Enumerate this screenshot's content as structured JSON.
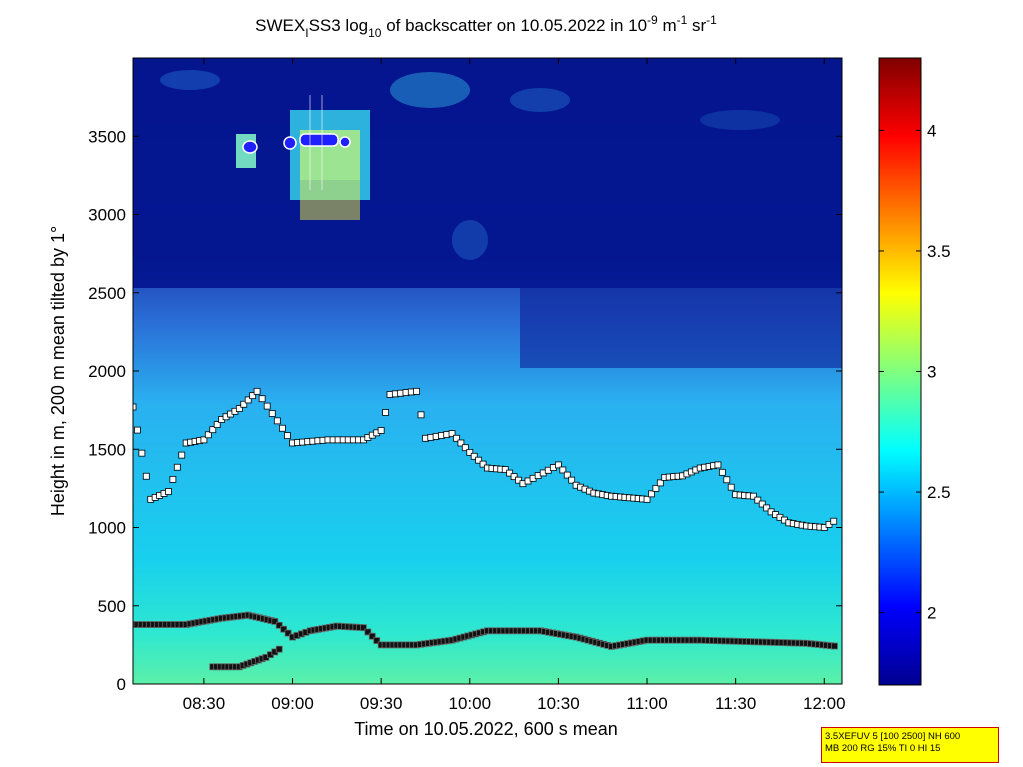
{
  "chart_data": {
    "type": "heatmap",
    "title": {
      "prefix": "SWEX",
      "sub1": "I",
      "middle": "SS3 log",
      "sub2": "10",
      "suffix1": " of backscatter on 10.05.2022 in 10",
      "sup1": "-9",
      "suffix2": " m",
      "sup2": "-1",
      "suffix3": " sr",
      "sup3": "-1"
    },
    "xlabel": "Time on 10.05.2022, 600 s mean",
    "ylabel": "Height in m, 200 m mean tilted by 1°",
    "x_ticks": [
      "08:30",
      "09:00",
      "09:30",
      "10:00",
      "10:30",
      "11:00",
      "11:30",
      "12:00"
    ],
    "x_range_hours": [
      8.1,
      12.1
    ],
    "y_ticks": [
      "0",
      "500",
      "1000",
      "1500",
      "2000",
      "2500",
      "3000",
      "3500"
    ],
    "y_range": [
      0,
      4000
    ],
    "colorbar": {
      "ticks": [
        "2",
        "2.5",
        "3",
        "3.5",
        "4"
      ],
      "range": [
        1.7,
        4.3
      ],
      "colormap": "jet"
    },
    "layer_markers": {
      "surface_layer": [
        [
          8.1,
          380
        ],
        [
          8.4,
          380
        ],
        [
          8.6,
          420
        ],
        [
          8.75,
          440
        ],
        [
          8.9,
          400
        ],
        [
          9.0,
          300
        ],
        [
          9.1,
          340
        ],
        [
          9.25,
          370
        ],
        [
          9.4,
          360
        ],
        [
          9.5,
          250
        ],
        [
          9.7,
          250
        ],
        [
          9.9,
          280
        ],
        [
          10.1,
          340
        ],
        [
          10.4,
          340
        ],
        [
          10.6,
          300
        ],
        [
          10.8,
          240
        ],
        [
          11.0,
          280
        ],
        [
          11.3,
          280
        ],
        [
          11.6,
          270
        ],
        [
          11.9,
          260
        ],
        [
          12.08,
          240
        ]
      ],
      "rising_layer": [
        [
          8.55,
          110
        ],
        [
          8.7,
          110
        ],
        [
          8.85,
          170
        ],
        [
          8.95,
          240
        ]
      ],
      "cloud_base": [
        [
          8.1,
          1770
        ],
        [
          8.2,
          1180
        ],
        [
          8.3,
          1230
        ],
        [
          8.4,
          1540
        ],
        [
          8.5,
          1560
        ],
        [
          8.6,
          1690
        ],
        [
          8.7,
          1760
        ],
        [
          8.8,
          1870
        ],
        [
          9.0,
          1540
        ],
        [
          9.2,
          1560
        ],
        [
          9.4,
          1560
        ],
        [
          9.5,
          1620
        ],
        [
          9.55,
          1850
        ],
        [
          9.7,
          1870
        ],
        [
          9.75,
          1570
        ],
        [
          9.9,
          1600
        ],
        [
          10.0,
          1480
        ],
        [
          10.1,
          1380
        ],
        [
          10.2,
          1370
        ],
        [
          10.3,
          1280
        ],
        [
          10.5,
          1400
        ],
        [
          10.6,
          1270
        ],
        [
          10.7,
          1220
        ],
        [
          10.8,
          1200
        ],
        [
          10.9,
          1190
        ],
        [
          11.0,
          1180
        ],
        [
          11.1,
          1320
        ],
        [
          11.2,
          1330
        ],
        [
          11.3,
          1380
        ],
        [
          11.4,
          1400
        ],
        [
          11.5,
          1210
        ],
        [
          11.6,
          1200
        ],
        [
          11.7,
          1100
        ],
        [
          11.8,
          1030
        ],
        [
          11.9,
          1010
        ],
        [
          12.0,
          1000
        ],
        [
          12.08,
          1060
        ]
      ]
    }
  },
  "info_box": {
    "line1": "3.5XEFUV 5 [100 2500] NH 600",
    "line2": "MB 200 RG 15% TI 0 HI 15"
  }
}
